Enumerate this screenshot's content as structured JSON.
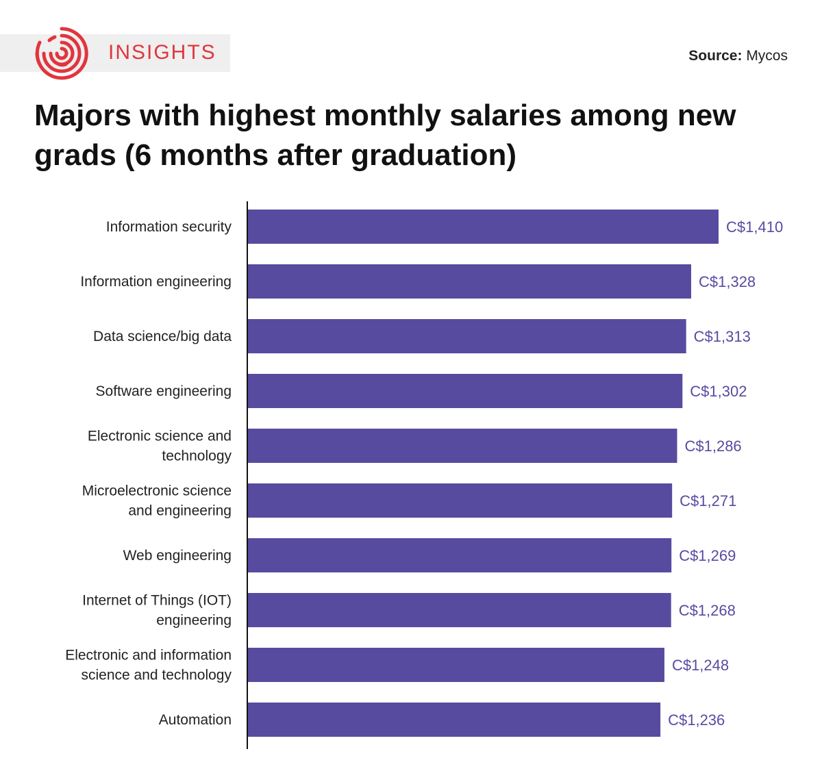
{
  "brand": {
    "name": "INSIGHTS",
    "icon": "concentric-rings-logo",
    "color": "#e1353e"
  },
  "source": {
    "label": "Source:",
    "value": "Mycos"
  },
  "chart_data": {
    "type": "bar",
    "orientation": "horizontal",
    "title": "Majors with highest monthly salaries among new grads (6 months after graduation)",
    "categories": [
      "Information security",
      "Information engineering",
      "Data science/big data",
      "Software engineering",
      "Electronic science and technology",
      "Microelectronic science and engineering",
      "Web engineering",
      "Internet of Things (IOT) engineering",
      "Electronic and information science and technology",
      "Automation"
    ],
    "category_lines": [
      [
        "Information security"
      ],
      [
        "Information engineering"
      ],
      [
        "Data science/big data"
      ],
      [
        "Software engineering"
      ],
      [
        "Electronic science and",
        "technology"
      ],
      [
        "Microelectronic science",
        "and engineering"
      ],
      [
        "Web engineering"
      ],
      [
        "Internet of Things (IOT)",
        "engineering"
      ],
      [
        "Electronic and information",
        "science and technology"
      ],
      [
        "Automation"
      ]
    ],
    "values": [
      1410,
      1328,
      1313,
      1302,
      1286,
      1271,
      1269,
      1268,
      1248,
      1236
    ],
    "value_labels": [
      "C$1,410",
      "C$1,328",
      "C$1,313",
      "C$1,302",
      "C$1,286",
      "C$1,271",
      "C$1,269",
      "C$1,268",
      "C$1,248",
      "C$1,236"
    ],
    "xlim": [
      0,
      1410
    ],
    "xlabel": "",
    "ylabel": "",
    "grid": false,
    "legend": "none",
    "bar_color": "#574ba0",
    "value_label_color": "#574ba0"
  }
}
